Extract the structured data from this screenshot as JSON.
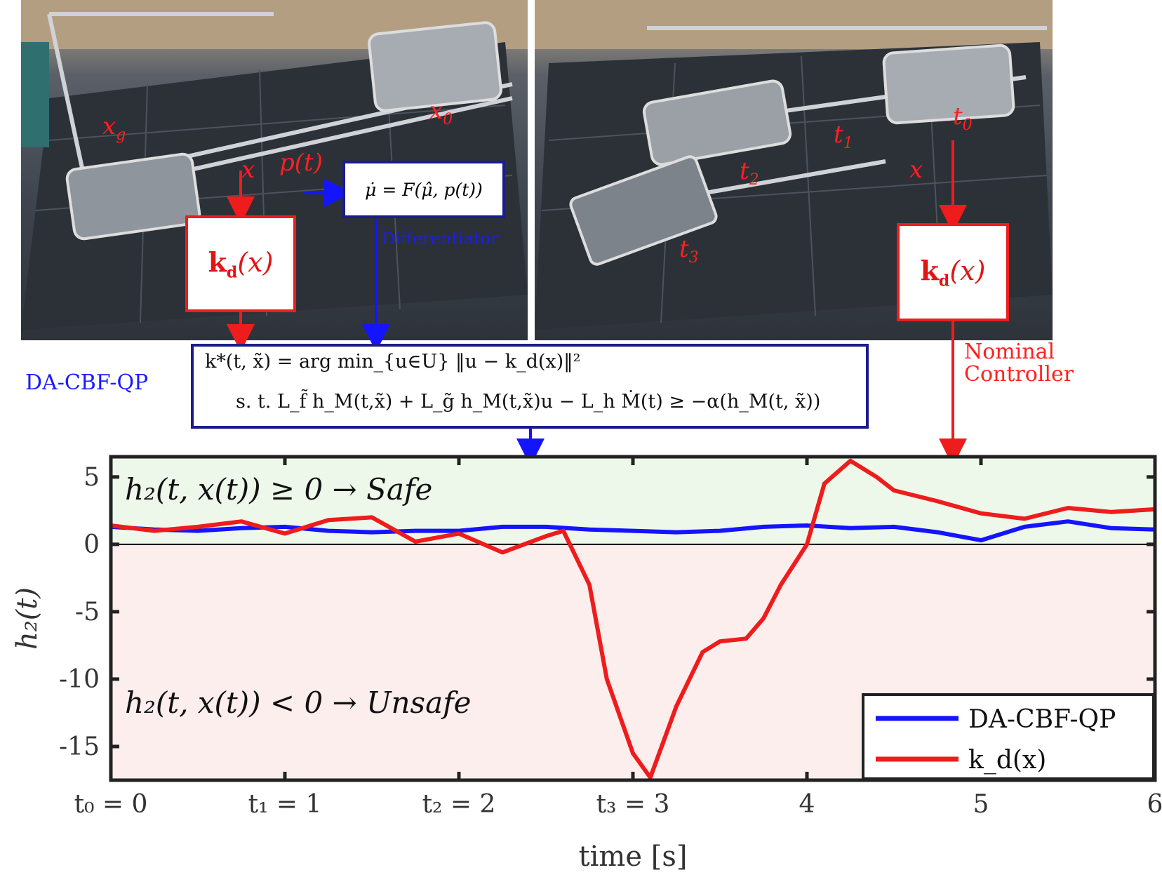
{
  "labels": {
    "x_g": "x_g",
    "x_0": "x_0",
    "t_0": "t_0",
    "t_1": "t_1",
    "t_2": "t_2",
    "t_3": "t_3",
    "x_left": "x",
    "x_right": "x",
    "p_t": "p(t)",
    "kd_box": "k_d(x)",
    "differentiator_eq": "μ̇ = F(μ̂, p(t))",
    "differentiator": "Differentiator",
    "da_cbf_qp": "DA-CBF-QP",
    "nominal_line1": "Nominal",
    "nominal_line2": "Controller",
    "qp_line1": "k*(t, x̃) = arg min_{u∈U} ‖u − k_d(x)‖²",
    "qp_line2": "s. t. L_f̃ h_M(t,x̃) + L_g̃ h_M(t,x̃)u − L_h Ṁ(t) ≥ −α(h_M(t, x̃))",
    "safe_text": "h₂(t, x(t)) ≥ 0 → Safe",
    "unsafe_text": "h₂(t, x(t)) < 0 → Unsafe"
  },
  "colors": {
    "red": "#ee1c1c",
    "blue": "#1414ff",
    "navy": "#1c1c8c",
    "safe_bg": "#eef8ea",
    "unsafe_bg": "#fdeeee"
  },
  "chart_data": {
    "type": "line",
    "xlabel": "time [s]",
    "ylabel": "h₂(t)",
    "xlim": [
      0,
      6
    ],
    "ylim": [
      -17.5,
      6.5
    ],
    "xticks": [
      0,
      1,
      2,
      3,
      4,
      5,
      6
    ],
    "xtick_labels": [
      "t₀ = 0",
      "t₁ = 1",
      "t₂ = 2",
      "t₃ = 3",
      "4",
      "5",
      "6"
    ],
    "yticks": [
      5,
      0,
      -5,
      -10,
      -15
    ],
    "ytick_labels": [
      "5",
      "0",
      "-5",
      "-10",
      "-15"
    ],
    "legend_position": "bottom-right",
    "series": [
      {
        "name": "DA-CBF-QP",
        "color": "#1414ff",
        "x": [
          0,
          0.25,
          0.5,
          0.75,
          1.0,
          1.25,
          1.5,
          1.75,
          2.0,
          2.25,
          2.5,
          2.75,
          3.0,
          3.25,
          3.5,
          3.75,
          4.0,
          4.25,
          4.5,
          4.75,
          5.0,
          5.25,
          5.5,
          5.75,
          6.0
        ],
        "y": [
          1.3,
          1.1,
          1.0,
          1.2,
          1.3,
          1.0,
          0.9,
          1.0,
          1.0,
          1.3,
          1.3,
          1.1,
          1.0,
          0.9,
          1.0,
          1.3,
          1.4,
          1.2,
          1.3,
          0.9,
          0.3,
          1.3,
          1.7,
          1.2,
          1.1
        ]
      },
      {
        "name": "k_d(x)",
        "color": "#ee1c1c",
        "x": [
          0,
          0.25,
          0.5,
          0.75,
          1.0,
          1.25,
          1.5,
          1.75,
          2.0,
          2.25,
          2.5,
          2.6,
          2.75,
          2.85,
          3.0,
          3.1,
          3.25,
          3.4,
          3.5,
          3.65,
          3.75,
          3.85,
          4.0,
          4.1,
          4.25,
          4.4,
          4.5,
          4.75,
          5.0,
          5.25,
          5.5,
          5.75,
          6.0
        ],
        "y": [
          1.4,
          1.0,
          1.3,
          1.7,
          0.8,
          1.8,
          2.0,
          0.2,
          0.8,
          -0.6,
          0.6,
          1.0,
          -3.0,
          -10.0,
          -15.5,
          -17.3,
          -12.0,
          -8.0,
          -7.2,
          -7.0,
          -5.5,
          -3.0,
          0.0,
          4.5,
          6.2,
          5.0,
          4.0,
          3.2,
          2.3,
          1.9,
          2.7,
          2.4,
          2.6
        ]
      }
    ]
  }
}
